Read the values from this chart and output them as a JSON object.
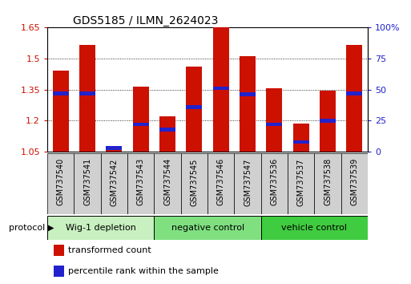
{
  "title": "GDS5185 / ILMN_2624023",
  "samples": [
    "GSM737540",
    "GSM737541",
    "GSM737542",
    "GSM737543",
    "GSM737544",
    "GSM737545",
    "GSM737546",
    "GSM737547",
    "GSM737536",
    "GSM737537",
    "GSM737538",
    "GSM737539"
  ],
  "transformed_counts": [
    1.44,
    1.565,
    1.075,
    1.365,
    1.22,
    1.46,
    1.65,
    1.51,
    1.355,
    1.185,
    1.345,
    1.565
  ],
  "percentile_ranks": [
    47,
    47,
    3,
    22,
    18,
    36,
    51,
    46,
    22,
    8,
    25,
    47
  ],
  "groups": [
    {
      "label": "Wig-1 depletion",
      "start": 0,
      "end": 4,
      "color": "#c8f0c0"
    },
    {
      "label": "negative control",
      "start": 4,
      "end": 8,
      "color": "#80e080"
    },
    {
      "label": "vehicle control",
      "start": 8,
      "end": 12,
      "color": "#40cc40"
    }
  ],
  "ylim_left": [
    1.05,
    1.65
  ],
  "ylim_right": [
    0,
    100
  ],
  "yticks_left": [
    1.05,
    1.2,
    1.35,
    1.5,
    1.65
  ],
  "yticks_right": [
    0,
    25,
    50,
    75,
    100
  ],
  "ytick_labels_right": [
    "0",
    "25",
    "50",
    "75",
    "100%"
  ],
  "bar_color": "#cc1100",
  "percentile_color": "#2222cc",
  "bar_width": 0.6,
  "bar_base": 1.05,
  "bg_color": "#ffffff",
  "tick_label_color_left": "#cc1100",
  "tick_label_color_right": "#2222cc",
  "legend_items": [
    {
      "label": "transformed count",
      "color": "#cc1100"
    },
    {
      "label": "percentile rank within the sample",
      "color": "#2222cc"
    }
  ],
  "protocol_label": "protocol",
  "sample_bg": "#d0d0d0"
}
